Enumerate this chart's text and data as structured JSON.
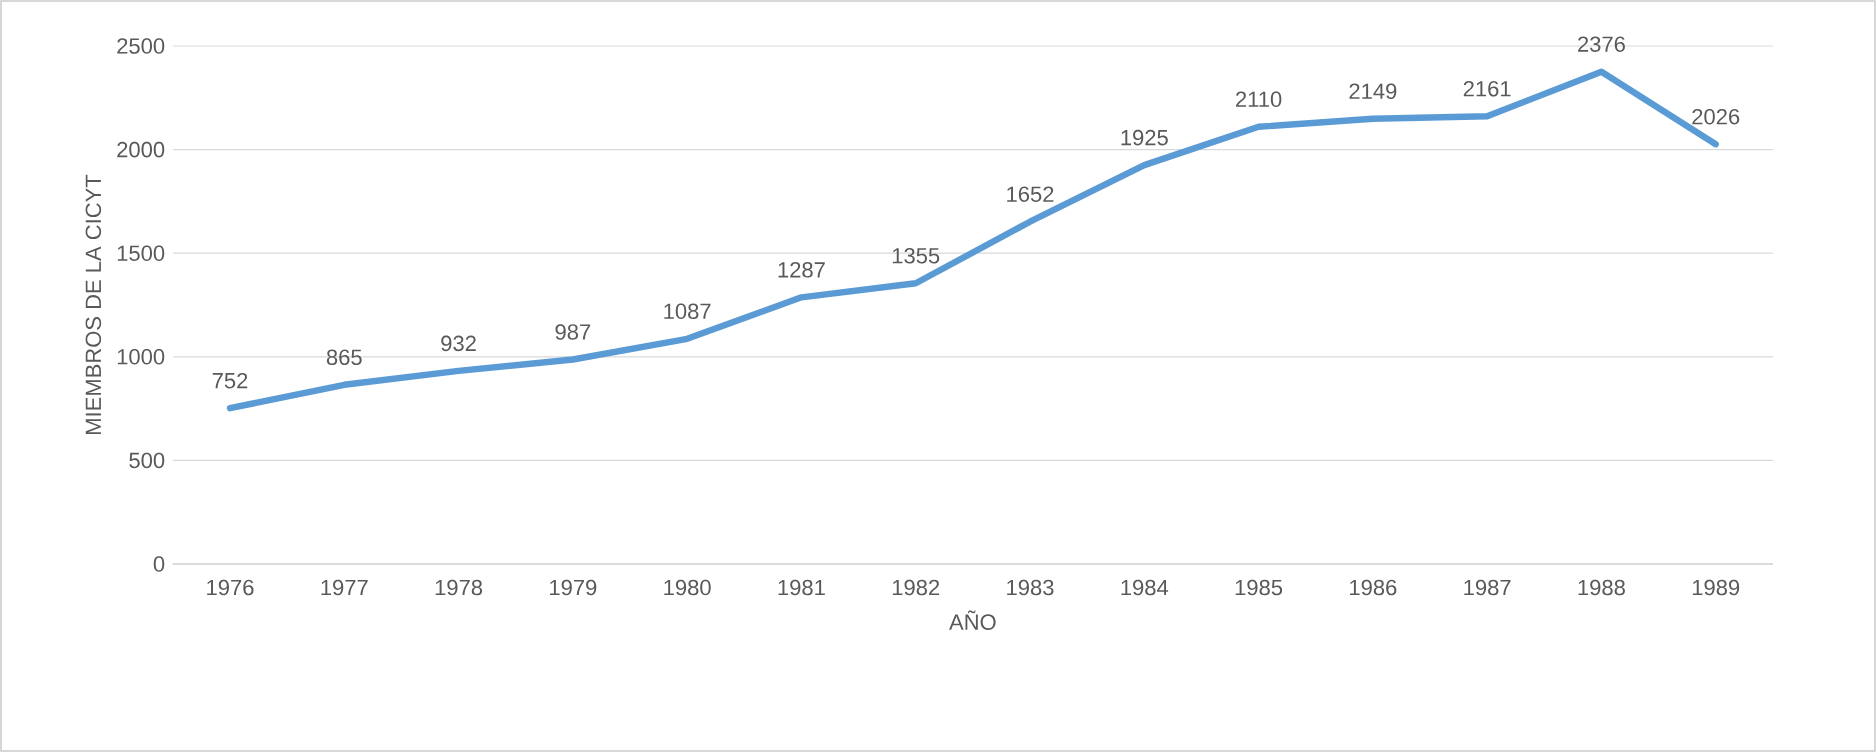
{
  "chart_data": {
    "type": "line",
    "xlabel": "AÑO",
    "ylabel": "MIEMBROS DE LA CICYT",
    "categories": [
      "1976",
      "1977",
      "1978",
      "1979",
      "1980",
      "1981",
      "1982",
      "1983",
      "1984",
      "1985",
      "1986",
      "1987",
      "1988",
      "1989"
    ],
    "values": [
      752,
      865,
      932,
      987,
      1087,
      1287,
      1355,
      1652,
      1925,
      2110,
      2149,
      2161,
      2376,
      2026
    ],
    "color": "#5b9bd5",
    "ylim": [
      0,
      2500
    ],
    "yticks": [
      0,
      500,
      1000,
      1500,
      2000,
      2500
    ],
    "grid": "y",
    "data_labels": true,
    "marker": "none",
    "line_style": "solid"
  }
}
